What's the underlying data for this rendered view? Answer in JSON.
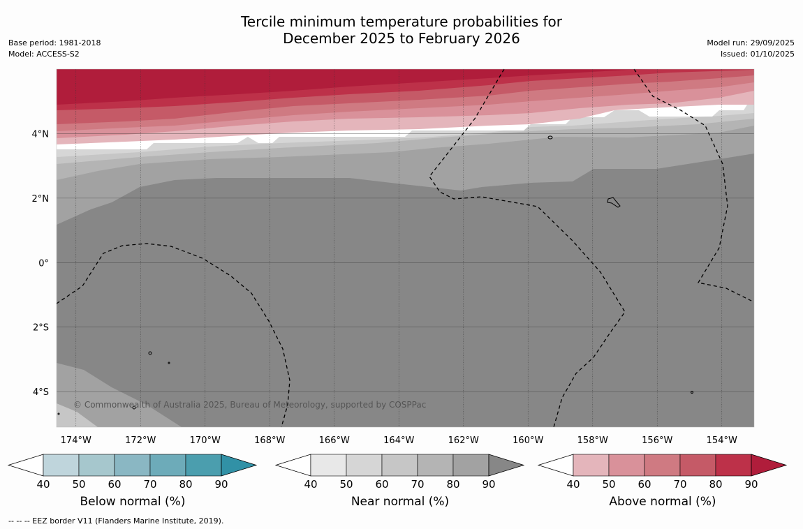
{
  "title_line1": "Tercile minimum temperature probabilities for",
  "title_line2": "December 2025 to February 2026",
  "base_period": "Base period: 1981-2018",
  "model": "Model: ACCESS-S2",
  "model_run": "Model run: 29/09/2025",
  "issued": "Issued: 01/10/2025",
  "copyright": "© Commonwealth of Australia 2025, Bureau of Meteorology, supported by COSPPac",
  "footer_note": "--  --  -- EEZ border V11 (Flanders Marine Institute, 2019).",
  "chart_data": {
    "type": "heatmap",
    "title": "Tercile minimum temperature probabilities for December 2025 to February 2026",
    "x_ticks": [
      "174°W",
      "172°W",
      "170°W",
      "168°W",
      "166°W",
      "164°W",
      "162°W",
      "160°W",
      "158°W",
      "156°W",
      "154°W"
    ],
    "y_ticks": [
      "4°N",
      "2°N",
      "0°",
      "2°S",
      "4°S"
    ],
    "lon_range": [
      -174.6,
      -153.0
    ],
    "lat_range": [
      -5.1,
      6.0
    ],
    "colorbars": [
      {
        "name": "below",
        "label": "Below normal (%)",
        "ticks": [
          "40",
          "50",
          "60",
          "70",
          "80",
          "90"
        ],
        "colors": [
          "#bfd5dc",
          "#a6c7cd",
          "#8ab7c3",
          "#6dabb9",
          "#4b9eae",
          "#3191a6"
        ]
      },
      {
        "name": "near",
        "label": "Near normal (%)",
        "ticks": [
          "40",
          "50",
          "60",
          "70",
          "80",
          "90"
        ],
        "colors": [
          "#e8e8e8",
          "#d6d6d6",
          "#c6c6c6",
          "#b4b4b4",
          "#a2a2a2",
          "#878787"
        ]
      },
      {
        "name": "above",
        "label": "Above normal (%)",
        "ticks": [
          "40",
          "50",
          "60",
          "70",
          "80",
          "90"
        ],
        "colors": [
          "#e4b5bb",
          "#d9919a",
          "#cf7a82",
          "#c55a67",
          "#bd3149",
          "#b01d3b"
        ]
      }
    ],
    "regions": [
      {
        "category": "above",
        "probability": "90",
        "area": "north of ~5°N"
      },
      {
        "category": "above",
        "probability": "40-80",
        "area": "~4°N to 5°N band"
      },
      {
        "category": "near",
        "probability": "40-80",
        "area": "~2.5°N to 4°N band"
      },
      {
        "category": "near",
        "probability": "90",
        "area": "2°N to 5°S (most of domain)"
      },
      {
        "category": "near",
        "probability": "50-80",
        "area": "southwest corner"
      }
    ]
  }
}
